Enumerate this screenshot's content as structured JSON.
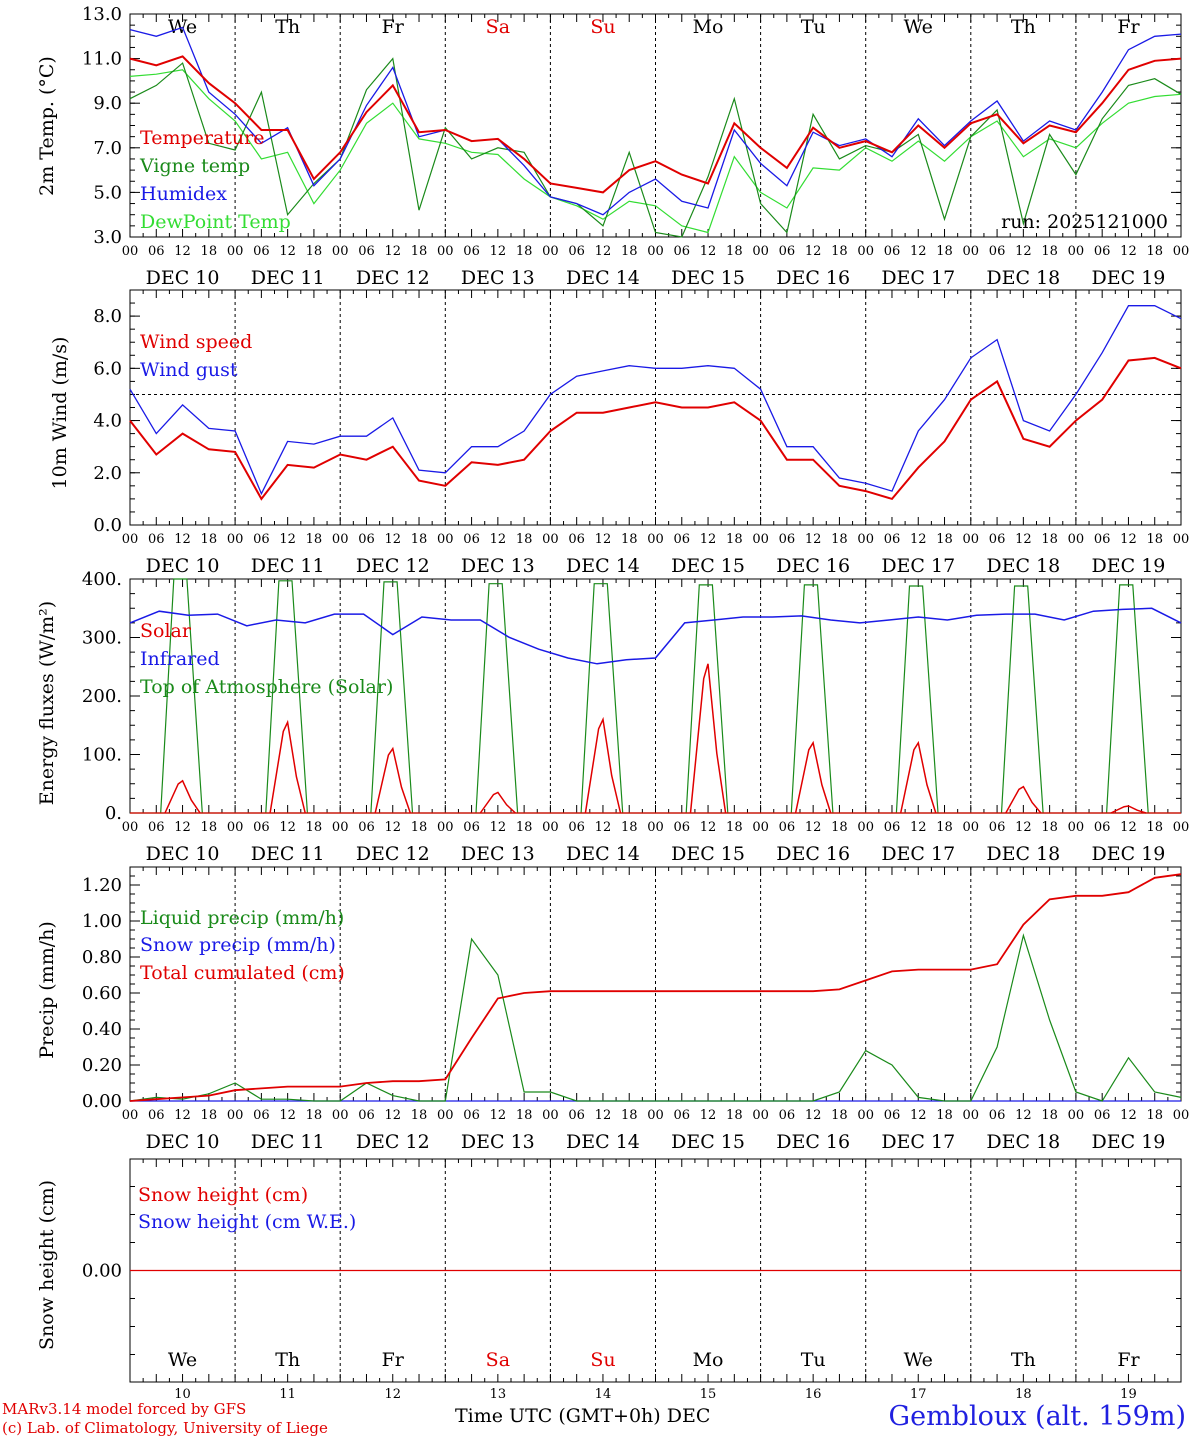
{
  "colors": {
    "red": "#e00000",
    "green": "#1a8a1a",
    "blue": "#1a1ae6",
    "lightgreen": "#33dd33",
    "grid": "#000000"
  },
  "days": {
    "weekday_labels": [
      "We",
      "Th",
      "Fr",
      "Sa",
      "Su",
      "Mo",
      "Tu",
      "We",
      "Th",
      "Fr"
    ],
    "weekend_flags": [
      false,
      false,
      false,
      true,
      true,
      false,
      false,
      false,
      false,
      false
    ],
    "date_labels": [
      "DEC 10",
      "DEC 11",
      "DEC 12",
      "DEC 13",
      "DEC 14",
      "DEC 15",
      "DEC 16",
      "DEC 17",
      "DEC 18",
      "DEC 19"
    ],
    "day_numbers": [
      "10",
      "11",
      "12",
      "13",
      "14",
      "15",
      "16",
      "17",
      "18",
      "19"
    ],
    "hour_ticks": [
      "00",
      "06",
      "12",
      "18"
    ]
  },
  "footer": {
    "model_line": "MARv3.14 model forced by GFS",
    "credit_line": "(c) Lab. of Climatology, University of Liege",
    "axis_title": "Time UTC (GMT+0h) DEC",
    "station": "Gembloux (alt. 159m)"
  },
  "chart_data": [
    {
      "type": "line",
      "title": "2m Temp. (°C)",
      "ylabel": "2m Temp. (°C)",
      "ylim": [
        3.0,
        13.0
      ],
      "yticks": [
        "3.0",
        "5.0",
        "7.0",
        "9.0",
        "11.0",
        "13.0"
      ],
      "annotation": "run: 2025121000",
      "x_hours": [
        0,
        6,
        12,
        18,
        24,
        30,
        36,
        42,
        48,
        54,
        60,
        66,
        72,
        78,
        84,
        90,
        96,
        102,
        108,
        114,
        120,
        126,
        132,
        138,
        144,
        150,
        156,
        162,
        168,
        174,
        180,
        186,
        192,
        198,
        204,
        210,
        216,
        222,
        228,
        234,
        240
      ],
      "series": [
        {
          "name": "Temperature",
          "color": "#e00000",
          "values": [
            11.0,
            10.7,
            11.1,
            9.9,
            9.0,
            7.8,
            7.8,
            5.6,
            6.8,
            8.6,
            9.8,
            7.7,
            7.8,
            7.3,
            7.4,
            6.5,
            5.4,
            5.2,
            5.0,
            6.0,
            6.4,
            5.8,
            5.4,
            8.1,
            7.0,
            6.1,
            7.9,
            7.0,
            7.3,
            6.8,
            8.0,
            7.0,
            8.1,
            8.5,
            7.2,
            8.0,
            7.7,
            9.0,
            10.5,
            10.9,
            11.0
          ]
        },
        {
          "name": "Vigne temp",
          "color": "#1a8a1a",
          "values": [
            9.2,
            9.8,
            10.8,
            7.2,
            6.9,
            9.5,
            4.0,
            5.4,
            6.5,
            9.6,
            11.0,
            4.2,
            7.9,
            6.5,
            7.0,
            6.8,
            4.8,
            4.5,
            3.5,
            6.8,
            3.2,
            3.0,
            5.7,
            9.2,
            4.5,
            3.2,
            8.5,
            6.5,
            7.1,
            6.8,
            7.6,
            3.8,
            7.5,
            8.7,
            3.6,
            7.6,
            5.8,
            8.3,
            9.8,
            10.1,
            9.4
          ]
        },
        {
          "name": "Humidex",
          "color": "#1a1ae6",
          "values": [
            12.3,
            12.0,
            12.4,
            9.5,
            8.5,
            7.2,
            7.9,
            5.3,
            6.5,
            8.9,
            10.6,
            7.5,
            7.8,
            7.3,
            7.4,
            6.2,
            4.8,
            4.5,
            4.0,
            5.0,
            5.6,
            4.6,
            4.3,
            7.8,
            6.3,
            5.3,
            7.7,
            7.1,
            7.4,
            6.6,
            8.3,
            7.1,
            8.2,
            9.1,
            7.3,
            8.2,
            7.8,
            9.5,
            11.4,
            12.0,
            12.1
          ]
        },
        {
          "name": "DewPoint Temp",
          "color": "#33dd33",
          "values": [
            10.2,
            10.3,
            10.5,
            9.2,
            8.2,
            6.5,
            6.8,
            4.5,
            6.0,
            8.1,
            9.0,
            7.4,
            7.2,
            6.8,
            6.7,
            5.6,
            4.8,
            4.4,
            3.8,
            4.6,
            4.4,
            3.5,
            3.2,
            6.6,
            5.0,
            4.3,
            6.1,
            6.0,
            7.0,
            6.4,
            7.3,
            6.4,
            7.5,
            8.2,
            6.6,
            7.4,
            7.0,
            8.1,
            9.0,
            9.3,
            9.4
          ]
        }
      ]
    },
    {
      "type": "line",
      "title": "10m Wind (m/s)",
      "ylabel": "10m Wind (m/s)",
      "ylim": [
        0.0,
        9.0
      ],
      "yticks": [
        "0.0",
        "2.0",
        "4.0",
        "6.0",
        "8.0"
      ],
      "reference_line": 5.0,
      "x_hours": [
        0,
        6,
        12,
        18,
        24,
        30,
        36,
        42,
        48,
        54,
        60,
        66,
        72,
        78,
        84,
        90,
        96,
        102,
        108,
        114,
        120,
        126,
        132,
        138,
        144,
        150,
        156,
        162,
        168,
        174,
        180,
        186,
        192,
        198,
        204,
        210,
        216,
        222,
        228,
        234,
        240
      ],
      "series": [
        {
          "name": "Wind speed",
          "color": "#e00000",
          "values": [
            4.0,
            2.7,
            3.5,
            2.9,
            2.8,
            1.0,
            2.3,
            2.2,
            2.7,
            2.5,
            3.0,
            1.7,
            1.5,
            2.4,
            2.3,
            2.5,
            3.6,
            4.3,
            4.3,
            4.5,
            4.7,
            4.5,
            4.5,
            4.7,
            4.0,
            2.5,
            2.5,
            1.5,
            1.3,
            1.0,
            2.2,
            3.2,
            4.8,
            5.5,
            3.3,
            3.0,
            4.0,
            4.8,
            6.3,
            6.4,
            6.0
          ]
        },
        {
          "name": "Wind gust",
          "color": "#1a1ae6",
          "values": [
            5.2,
            3.5,
            4.6,
            3.7,
            3.6,
            1.2,
            3.2,
            3.1,
            3.4,
            3.4,
            4.1,
            2.1,
            2.0,
            3.0,
            3.0,
            3.6,
            5.0,
            5.7,
            5.9,
            6.1,
            6.0,
            6.0,
            6.1,
            6.0,
            5.2,
            3.0,
            3.0,
            1.8,
            1.6,
            1.3,
            3.6,
            4.8,
            6.4,
            7.1,
            4.0,
            3.6,
            5.0,
            6.6,
            8.4,
            8.4,
            7.9
          ]
        }
      ]
    },
    {
      "type": "line",
      "title": "Energy fluxes (W/m²)",
      "ylabel": "Energy fluxes (W/m²)",
      "ylim": [
        0,
        400
      ],
      "yticks": [
        "0.",
        "100.",
        "200.",
        "300.",
        "400."
      ],
      "series": [
        {
          "name": "Solar",
          "color": "#e00000",
          "peaks": [
            55,
            155,
            110,
            35,
            160,
            255,
            120,
            120,
            45,
            12
          ]
        },
        {
          "name": "Infrared",
          "color": "#1a1ae6",
          "values": [
            325,
            345,
            338,
            340,
            320,
            330,
            325,
            340,
            340,
            305,
            335,
            330,
            330,
            300,
            280,
            265,
            255,
            262,
            265,
            325,
            330,
            335,
            335,
            337,
            330,
            325,
            330,
            335,
            330,
            338,
            340,
            340,
            330,
            345,
            348,
            350,
            325
          ]
        },
        {
          "name": "Top of Atmosphere (Solar)",
          "color": "#1a8a1a",
          "peaks": [
            400,
            397,
            395,
            392,
            392,
            390,
            390,
            388,
            388,
            390
          ]
        }
      ]
    },
    {
      "type": "line",
      "title": "Precip (mm/h)",
      "ylabel": "Precip (mm/h)",
      "ylim": [
        0.0,
        1.3
      ],
      "yticks": [
        "0.00",
        "0.20",
        "0.40",
        "0.60",
        "0.80",
        "1.00",
        "1.20"
      ],
      "x_hours": [
        0,
        6,
        12,
        18,
        24,
        30,
        36,
        42,
        48,
        54,
        60,
        66,
        72,
        78,
        84,
        90,
        96,
        102,
        108,
        114,
        120,
        126,
        132,
        138,
        144,
        150,
        156,
        162,
        168,
        174,
        180,
        186,
        192,
        198,
        204,
        210,
        216,
        222,
        228,
        234,
        240
      ],
      "series": [
        {
          "name": "Liquid precip (mm/h)",
          "color": "#1a8a1a",
          "values": [
            0.0,
            0.02,
            0.01,
            0.04,
            0.1,
            0.01,
            0.01,
            0.0,
            0.0,
            0.1,
            0.03,
            0.0,
            0.0,
            0.9,
            0.7,
            0.05,
            0.05,
            0.0,
            0.0,
            0.0,
            0.0,
            0.0,
            0.0,
            0.0,
            0.0,
            0.0,
            0.0,
            0.05,
            0.28,
            0.2,
            0.02,
            0.0,
            0.0,
            0.3,
            0.92,
            0.45,
            0.05,
            0.0,
            0.24,
            0.05,
            0.02
          ]
        },
        {
          "name": "Snow precip (mm/h)",
          "color": "#1a1ae6",
          "values": [
            0,
            0,
            0,
            0,
            0,
            0,
            0,
            0,
            0,
            0,
            0,
            0,
            0,
            0,
            0,
            0,
            0,
            0,
            0,
            0,
            0,
            0,
            0,
            0,
            0,
            0,
            0,
            0,
            0,
            0,
            0,
            0,
            0,
            0,
            0,
            0,
            0,
            0,
            0,
            0,
            0
          ]
        },
        {
          "name": "Total cumulated (cm)",
          "color": "#e00000",
          "values": [
            0.0,
            0.01,
            0.02,
            0.03,
            0.06,
            0.07,
            0.08,
            0.08,
            0.08,
            0.1,
            0.11,
            0.11,
            0.12,
            0.35,
            0.57,
            0.6,
            0.61,
            0.61,
            0.61,
            0.61,
            0.61,
            0.61,
            0.61,
            0.61,
            0.61,
            0.61,
            0.61,
            0.62,
            0.67,
            0.72,
            0.73,
            0.73,
            0.73,
            0.76,
            0.98,
            1.12,
            1.14,
            1.14,
            1.16,
            1.24,
            1.26
          ]
        }
      ]
    },
    {
      "type": "line",
      "title": "Snow height (cm)",
      "ylabel": "Snow height (cm)",
      "yticks": [
        "0.00"
      ],
      "series": [
        {
          "name": "Snow height (cm)",
          "color": "#e00000",
          "values": [
            0,
            0
          ]
        },
        {
          "name": "Snow height (cm W.E.)",
          "color": "#1a1ae6",
          "values": [
            0,
            0
          ]
        }
      ]
    }
  ]
}
